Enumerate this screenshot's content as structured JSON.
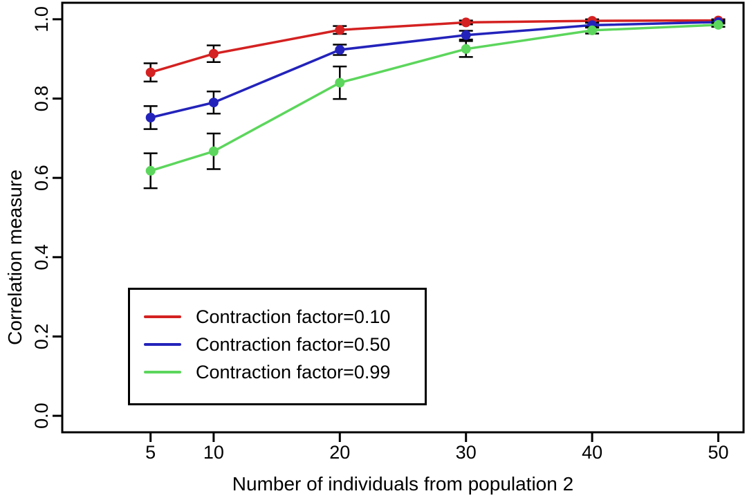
{
  "chart_data": {
    "type": "line",
    "title": "",
    "xlabel": "Number of individuals from population 2",
    "ylabel": "Correlation measure",
    "x": [
      5,
      10,
      20,
      30,
      40,
      50
    ],
    "xticks": [
      "5",
      "10",
      "20",
      "30",
      "40",
      "50"
    ],
    "yticks": [
      {
        "label": "0.0",
        "v": 0.0
      },
      {
        "label": "0.2",
        "v": 0.2
      },
      {
        "label": "0.4",
        "v": 0.4
      },
      {
        "label": "0.6",
        "v": 0.6
      },
      {
        "label": "0.8",
        "v": 0.8
      },
      {
        "label": "1.0",
        "v": 1.0
      }
    ],
    "xlim": [
      -2,
      52
    ],
    "ylim": [
      -0.0416,
      1.0416
    ],
    "grid": false,
    "legend_position": "inside-bottom-left",
    "axis_color": "#000000",
    "error_bar_color": "#000000",
    "series": [
      {
        "label": "Contraction factor=0.10",
        "color": "#d42121",
        "values": [
          0.866,
          0.913,
          0.973,
          0.992,
          0.996,
          0.997
        ],
        "errors": [
          0.023,
          0.021,
          0.01,
          0.005,
          0.004,
          0.003
        ]
      },
      {
        "label": "Contraction factor=0.50",
        "color": "#2323bb",
        "values": [
          0.752,
          0.79,
          0.923,
          0.96,
          0.985,
          0.993
        ],
        "errors": [
          0.029,
          0.028,
          0.013,
          0.011,
          0.006,
          0.004
        ]
      },
      {
        "label": "Contraction factor=0.99",
        "color": "#5cd65c",
        "values": [
          0.618,
          0.667,
          0.84,
          0.925,
          0.972,
          0.986
        ],
        "errors": [
          0.044,
          0.045,
          0.041,
          0.02,
          0.008,
          0.005
        ]
      }
    ]
  }
}
